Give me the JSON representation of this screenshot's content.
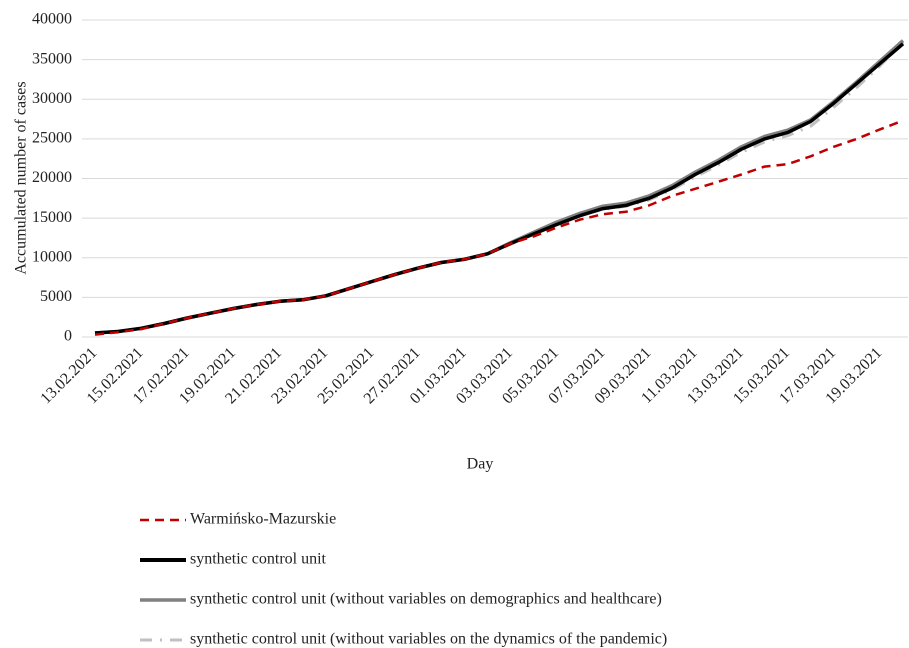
{
  "chart_data": {
    "type": "line",
    "y_label": "Accumulated number of cases",
    "x_label": "Day",
    "categories": [
      "13.02.2021",
      null,
      "15.02.2021",
      null,
      "17.02.2021",
      null,
      "19.02.2021",
      null,
      "21.02.2021",
      null,
      "23.02.2021",
      null,
      "25.02.2021",
      null,
      "27.02.2021",
      null,
      "01.03.2021",
      null,
      "03.03.2021",
      null,
      "05.03.2021",
      null,
      "07.03.2021",
      null,
      "09.03.2021",
      null,
      "11.03.2021",
      null,
      "13.03.2021",
      null,
      "15.03.2021",
      null,
      "17.03.2021",
      null,
      "19.03.2021",
      null
    ],
    "series": [
      {
        "name": "Warmińsko-Mazurskie",
        "color": "#c00000",
        "dash": "dashed",
        "values": [
          300,
          600,
          1000,
          1700,
          2400,
          3000,
          3600,
          4100,
          4500,
          4700,
          5200,
          6100,
          7000,
          7900,
          8700,
          9400,
          9800,
          10500,
          11800,
          12700,
          13800,
          14800,
          15500,
          15800,
          16600,
          17800,
          18700,
          19600,
          20500,
          21500,
          21800,
          22800,
          24000,
          25000,
          26200,
          27300
        ]
      },
      {
        "name": "synthetic control unit",
        "color": "#000000",
        "dash": "solid",
        "values": [
          500,
          700,
          1100,
          1700,
          2400,
          3000,
          3600,
          4100,
          4500,
          4700,
          5200,
          6100,
          7000,
          7900,
          8700,
          9400,
          9800,
          10500,
          11800,
          13000,
          14200,
          15300,
          16200,
          16600,
          17500,
          18800,
          20500,
          22000,
          23700,
          25000,
          25800,
          27200,
          29500,
          32000,
          34500,
          37000
        ]
      },
      {
        "name": "synthetic control unit (without variables on demographics and healthcare)",
        "color": "#808080",
        "dash": "solid",
        "values": [
          500,
          700,
          1100,
          1700,
          2400,
          3000,
          3600,
          4100,
          4500,
          4700,
          5200,
          6100,
          7000,
          7900,
          8700,
          9400,
          9800,
          10500,
          11900,
          13200,
          14500,
          15600,
          16500,
          16900,
          17800,
          19100,
          20800,
          22300,
          24000,
          25300,
          26100,
          27400,
          29700,
          32200,
          34800,
          37400
        ]
      },
      {
        "name": "synthetic control unit (without variables on the dynamics of the pandemic)",
        "color": "#c0c0c0",
        "dash": "dashdot",
        "values": [
          500,
          700,
          1100,
          1700,
          2400,
          3000,
          3600,
          4100,
          4500,
          4700,
          5200,
          6100,
          7000,
          7900,
          8700,
          9400,
          9800,
          10500,
          11700,
          13000,
          14300,
          15400,
          16100,
          16500,
          17300,
          18600,
          20200,
          21700,
          23300,
          24600,
          25400,
          26600,
          29000,
          31500,
          34200,
          37200
        ]
      }
    ],
    "ylim": [
      0,
      40000
    ],
    "yticks": [
      0,
      5000,
      10000,
      15000,
      20000,
      25000,
      30000,
      35000,
      40000
    ],
    "grid": true
  }
}
